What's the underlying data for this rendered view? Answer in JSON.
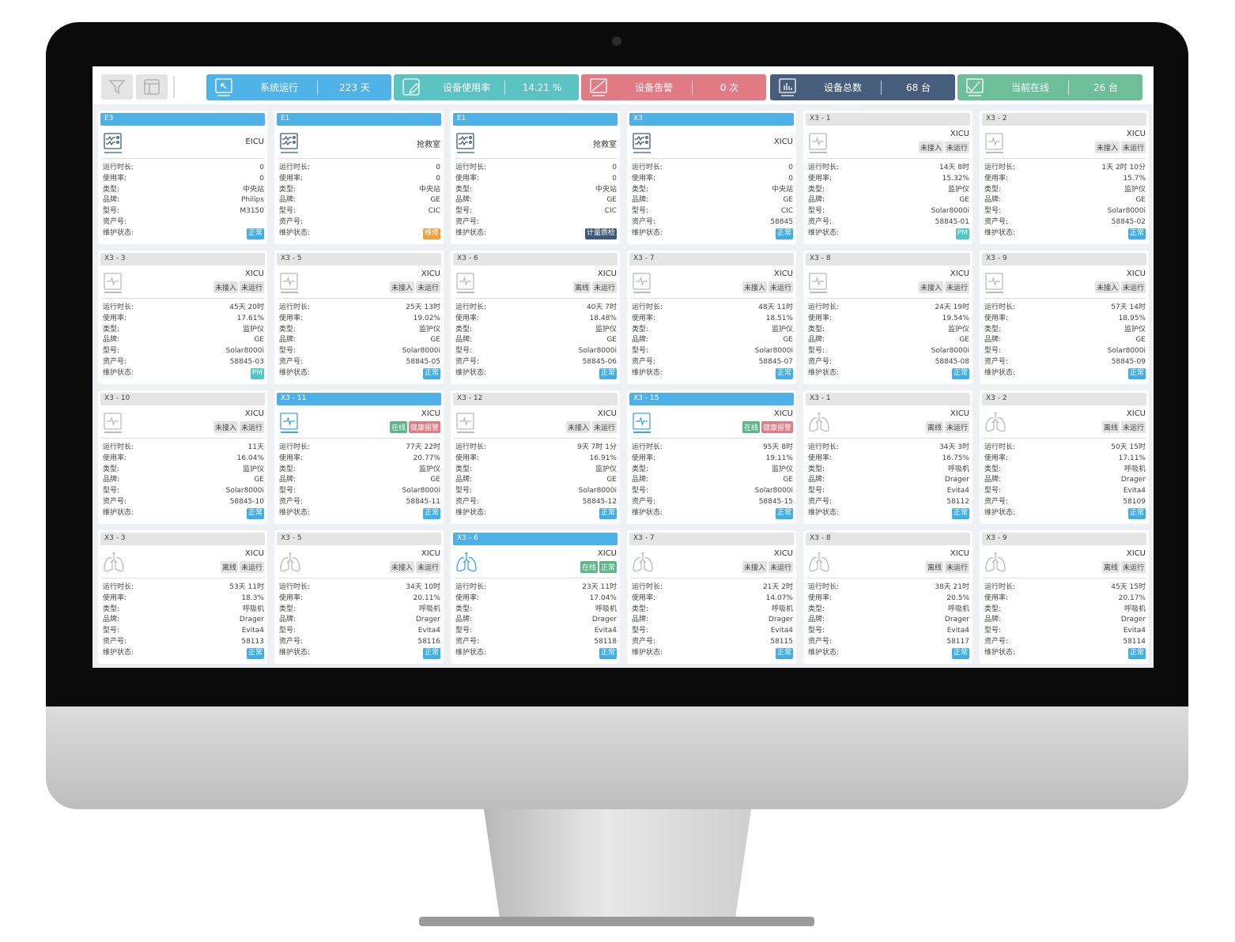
{
  "toolbar": {
    "filter_icon": "filter-icon",
    "layout_icon": "layout-icon"
  },
  "stats": [
    {
      "label": "系统运行",
      "value": "223 天",
      "color": "#4fb3e8",
      "icon": "cursor-screen-icon"
    },
    {
      "label": "设备使用率",
      "value": "14.21 %",
      "color": "#5cc3c3",
      "icon": "edit-screen-icon"
    },
    {
      "label": "设备告警",
      "value": "0 次",
      "color": "#e07b84",
      "icon": "slash-screen-icon"
    },
    {
      "label": "设备总数",
      "value": "68 台",
      "color": "#465d7b",
      "icon": "bar-chart-icon"
    },
    {
      "label": "当前在线",
      "value": "26 台",
      "color": "#6cbf98",
      "icon": "line-chart-icon"
    }
  ],
  "field_labels": [
    "运行时长:",
    "使用率:",
    "类型:",
    "品牌:",
    "型号:",
    "资产号:",
    "维护状态:"
  ],
  "cards": [
    {
      "title": "E3",
      "active": true,
      "icon": "central",
      "location": "EICU",
      "badges": [],
      "values": [
        "0",
        "0",
        "中央站",
        "Philips",
        "M3150",
        ""
      ],
      "status": {
        "text": "正常",
        "kind": "normal"
      }
    },
    {
      "title": "E1",
      "active": true,
      "icon": "central",
      "location": "抢救室",
      "badges": [],
      "values": [
        "0",
        "0",
        "中央站",
        "GE",
        "CIC",
        ""
      ],
      "status": {
        "text": "维修",
        "kind": "repair"
      }
    },
    {
      "title": "E1",
      "active": true,
      "icon": "central",
      "location": "抢救室",
      "badges": [],
      "values": [
        "0",
        "0",
        "中央站",
        "GE",
        "CIC",
        ""
      ],
      "status": {
        "text": "计量质检",
        "kind": "meter"
      }
    },
    {
      "title": "X3",
      "active": true,
      "icon": "central",
      "location": "XICU",
      "badges": [],
      "values": [
        "0",
        "0",
        "中央站",
        "GE",
        "CIC",
        "58845"
      ],
      "status": {
        "text": "正常",
        "kind": "normal"
      }
    },
    {
      "title": "X3 - 1",
      "active": false,
      "icon": "monitor",
      "location": "XICU",
      "badges": [
        {
          "text": "未接入",
          "kind": "gray"
        },
        {
          "text": "未运行",
          "kind": "gray"
        }
      ],
      "values": [
        "14天 8时",
        "15.32%",
        "监护仪",
        "GE",
        "Solar8000i",
        "58845-01"
      ],
      "status": {
        "text": "PM",
        "kind": "pm"
      }
    },
    {
      "title": "X3 - 2",
      "active": false,
      "icon": "monitor",
      "location": "XICU",
      "badges": [
        {
          "text": "未接入",
          "kind": "gray"
        },
        {
          "text": "未运行",
          "kind": "gray"
        }
      ],
      "values": [
        "1天 2时 10分",
        "15.7%",
        "监护仪",
        "GE",
        "Solar8000i",
        "58845-02"
      ],
      "status": {
        "text": "正常",
        "kind": "normal"
      }
    },
    {
      "title": "X3 - 3",
      "active": false,
      "icon": "monitor",
      "location": "XICU",
      "badges": [
        {
          "text": "未接入",
          "kind": "gray"
        },
        {
          "text": "未运行",
          "kind": "gray"
        }
      ],
      "values": [
        "45天 20时",
        "17.61%",
        "监护仪",
        "GE",
        "Solar8000i",
        "58845-03"
      ],
      "status": {
        "text": "PM",
        "kind": "pm"
      }
    },
    {
      "title": "X3 - 5",
      "active": false,
      "icon": "monitor",
      "location": "XICU",
      "badges": [
        {
          "text": "未接入",
          "kind": "gray"
        },
        {
          "text": "未运行",
          "kind": "gray"
        }
      ],
      "values": [
        "25天 13时",
        "19.02%",
        "监护仪",
        "GE",
        "Solar8000i",
        "58845-05"
      ],
      "status": {
        "text": "正常",
        "kind": "normal"
      }
    },
    {
      "title": "X3 - 6",
      "active": false,
      "icon": "monitor",
      "location": "XICU",
      "badges": [
        {
          "text": "离线",
          "kind": "gray"
        },
        {
          "text": "未运行",
          "kind": "gray"
        }
      ],
      "values": [
        "40天 7时",
        "18.48%",
        "监护仪",
        "GE",
        "Solar8000i",
        "58845-06"
      ],
      "status": {
        "text": "正常",
        "kind": "normal"
      }
    },
    {
      "title": "X3 - 7",
      "active": false,
      "icon": "monitor",
      "location": "XICU",
      "badges": [
        {
          "text": "未接入",
          "kind": "gray"
        },
        {
          "text": "未运行",
          "kind": "gray"
        }
      ],
      "values": [
        "48天 11时",
        "18.51%",
        "监护仪",
        "GE",
        "Solar8000i",
        "58845-07"
      ],
      "status": {
        "text": "正常",
        "kind": "normal"
      }
    },
    {
      "title": "X3 - 8",
      "active": false,
      "icon": "monitor",
      "location": "XICU",
      "badges": [
        {
          "text": "未接入",
          "kind": "gray"
        },
        {
          "text": "未运行",
          "kind": "gray"
        }
      ],
      "values": [
        "24天 19时",
        "19.54%",
        "监护仪",
        "GE",
        "Solar8000i",
        "58845-08"
      ],
      "status": {
        "text": "正常",
        "kind": "normal"
      }
    },
    {
      "title": "X3 - 9",
      "active": false,
      "icon": "monitor",
      "location": "XICU",
      "badges": [
        {
          "text": "未接入",
          "kind": "gray"
        },
        {
          "text": "未运行",
          "kind": "gray"
        }
      ],
      "values": [
        "57天 14时",
        "18.95%",
        "监护仪",
        "GE",
        "Solar8000i",
        "58845-09"
      ],
      "status": {
        "text": "正常",
        "kind": "normal"
      }
    },
    {
      "title": "X3 - 10",
      "active": false,
      "icon": "monitor",
      "location": "XICU",
      "badges": [
        {
          "text": "未接入",
          "kind": "gray"
        },
        {
          "text": "未运行",
          "kind": "gray"
        }
      ],
      "values": [
        "11天",
        "16.04%",
        "监护仪",
        "GE",
        "Solar8000i",
        "58845-10"
      ],
      "status": {
        "text": "正常",
        "kind": "normal"
      }
    },
    {
      "title": "X3 - 11",
      "active": true,
      "icon": "monitor",
      "location": "XICU",
      "badges": [
        {
          "text": "在线",
          "kind": "online"
        },
        {
          "text": "健康报警",
          "kind": "alarm"
        }
      ],
      "values": [
        "77天 22时",
        "20.77%",
        "监护仪",
        "GE",
        "Solar8000i",
        "58845-11"
      ],
      "status": {
        "text": "正常",
        "kind": "normal"
      }
    },
    {
      "title": "X3 - 12",
      "active": false,
      "icon": "monitor",
      "location": "XICU",
      "badges": [
        {
          "text": "未接入",
          "kind": "gray"
        },
        {
          "text": "未运行",
          "kind": "gray"
        }
      ],
      "values": [
        "9天 7时 1分",
        "16.91%",
        "监护仪",
        "GE",
        "Solar8000i",
        "58845-12"
      ],
      "status": {
        "text": "正常",
        "kind": "normal"
      }
    },
    {
      "title": "X3 - 15",
      "active": true,
      "icon": "monitor",
      "location": "XICU",
      "badges": [
        {
          "text": "在线",
          "kind": "online"
        },
        {
          "text": "健康报警",
          "kind": "alarm"
        }
      ],
      "values": [
        "95天 8时",
        "19.11%",
        "监护仪",
        "GE",
        "Solar8000i",
        "58845-15"
      ],
      "status": {
        "text": "正常",
        "kind": "normal"
      }
    },
    {
      "title": "X3 - 1",
      "active": false,
      "icon": "ventilator",
      "location": "XICU",
      "badges": [
        {
          "text": "离线",
          "kind": "gray"
        },
        {
          "text": "未运行",
          "kind": "gray"
        }
      ],
      "values": [
        "34天 3时",
        "16.75%",
        "呼吸机",
        "Drager",
        "Evita4",
        "58112"
      ],
      "status": {
        "text": "正常",
        "kind": "normal"
      }
    },
    {
      "title": "X3 - 2",
      "active": false,
      "icon": "ventilator",
      "location": "XICU",
      "badges": [
        {
          "text": "离线",
          "kind": "gray"
        },
        {
          "text": "未运行",
          "kind": "gray"
        }
      ],
      "values": [
        "50天 15时",
        "17.11%",
        "呼吸机",
        "Drager",
        "Evita4",
        "58109"
      ],
      "status": {
        "text": "正常",
        "kind": "normal"
      }
    },
    {
      "title": "X3 - 3",
      "active": false,
      "icon": "ventilator",
      "location": "XICU",
      "badges": [
        {
          "text": "离线",
          "kind": "gray"
        },
        {
          "text": "未运行",
          "kind": "gray"
        }
      ],
      "values": [
        "53天 11时",
        "18.3%",
        "呼吸机",
        "Drager",
        "Evita4",
        "58113"
      ],
      "status": {
        "text": "正常",
        "kind": "normal"
      }
    },
    {
      "title": "X3 - 5",
      "active": false,
      "icon": "ventilator",
      "location": "XICU",
      "badges": [
        {
          "text": "未接入",
          "kind": "gray"
        },
        {
          "text": "未运行",
          "kind": "gray"
        }
      ],
      "values": [
        "34天 10时",
        "20.11%",
        "呼吸机",
        "Drager",
        "Evita4",
        "58116"
      ],
      "status": {
        "text": "正常",
        "kind": "normal"
      }
    },
    {
      "title": "X3 - 6",
      "active": true,
      "icon": "ventilator",
      "location": "XICU",
      "badges": [
        {
          "text": "在线",
          "kind": "online"
        },
        {
          "text": "正常",
          "kind": "ok"
        }
      ],
      "values": [
        "23天 11时",
        "17.04%",
        "呼吸机",
        "Drager",
        "Evita4",
        "58118"
      ],
      "status": {
        "text": "正常",
        "kind": "normal"
      }
    },
    {
      "title": "X3 - 7",
      "active": false,
      "icon": "ventilator",
      "location": "XICU",
      "badges": [
        {
          "text": "未接入",
          "kind": "gray"
        },
        {
          "text": "未运行",
          "kind": "gray"
        }
      ],
      "values": [
        "21天 2时",
        "14.07%",
        "呼吸机",
        "Drager",
        "Evita4",
        "58115"
      ],
      "status": {
        "text": "正常",
        "kind": "normal"
      }
    },
    {
      "title": "X3 - 8",
      "active": false,
      "icon": "ventilator",
      "location": "XICU",
      "badges": [
        {
          "text": "离线",
          "kind": "gray"
        },
        {
          "text": "未运行",
          "kind": "gray"
        }
      ],
      "values": [
        "38天 21时",
        "20.5%",
        "呼吸机",
        "Drager",
        "Evita4",
        "58117"
      ],
      "status": {
        "text": "正常",
        "kind": "normal"
      }
    },
    {
      "title": "X3 - 9",
      "active": false,
      "icon": "ventilator",
      "location": "XICU",
      "badges": [
        {
          "text": "离线",
          "kind": "gray"
        },
        {
          "text": "未运行",
          "kind": "gray"
        }
      ],
      "values": [
        "45天 15时",
        "20.17%",
        "呼吸机",
        "Drager",
        "Evita4",
        "58114"
      ],
      "status": {
        "text": "正常",
        "kind": "normal"
      }
    }
  ]
}
